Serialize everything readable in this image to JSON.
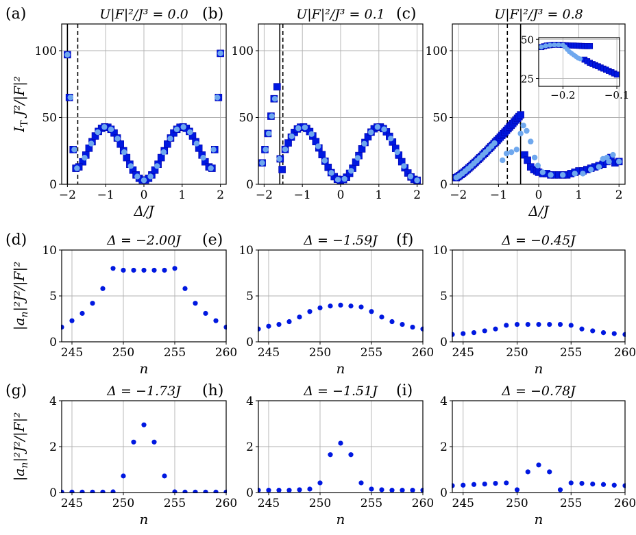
{
  "figure": {
    "colors": {
      "dark": "#0018e0",
      "light": "#6fa8ee",
      "dark_edge": "#0000aa"
    }
  },
  "chart_data": [
    {
      "id": "a",
      "panel_label": "(a)",
      "type": "scatter",
      "title": "U|F|²/J³ = 0.0",
      "xlabel": "Δ/J",
      "ylabel": "I_T J²/|F|²",
      "xlim": [
        -2.15,
        2.15
      ],
      "ylim": [
        0,
        120
      ],
      "xticks": [
        -2,
        -1,
        0,
        1,
        2
      ],
      "yticks": [
        0,
        50,
        100
      ],
      "grid": true,
      "vlines": [
        {
          "x": -2.0,
          "style": "solid"
        },
        {
          "x": -1.73,
          "style": "dashed"
        }
      ],
      "series": [
        {
          "marker": "square",
          "color": "dark",
          "fn": "cos",
          "x_from": -1.6,
          "x_to": 1.6,
          "points": 40,
          "extra": [
            [
              -2.0,
              97
            ],
            [
              -1.95,
              65
            ],
            [
              -1.85,
              26
            ],
            [
              -1.78,
              12
            ],
            [
              -1.7,
              13
            ],
            [
              1.7,
              13
            ],
            [
              1.78,
              12
            ],
            [
              1.85,
              26
            ],
            [
              1.95,
              65
            ],
            [
              2.0,
              98
            ]
          ]
        },
        {
          "marker": "circle",
          "color": "light",
          "fn": "cos",
          "x_from": -1.55,
          "x_to": 1.55,
          "points": 19,
          "extra": [
            [
              -2.0,
              97
            ],
            [
              -1.92,
              65
            ],
            [
              -1.82,
              26
            ],
            [
              -1.75,
              12
            ],
            [
              1.75,
              12
            ],
            [
              1.82,
              26
            ],
            [
              1.92,
              65
            ],
            [
              2.0,
              98
            ]
          ]
        }
      ]
    },
    {
      "id": "b",
      "panel_label": "(b)",
      "type": "scatter",
      "title": "U|F|²/J³ = 0.1",
      "xlabel": "",
      "ylabel": "",
      "xlim": [
        -2.15,
        2.15
      ],
      "ylim": [
        0,
        120
      ],
      "xticks": [
        -2,
        -1,
        0,
        1,
        2
      ],
      "yticks": [
        0,
        50,
        100
      ],
      "grid": true,
      "vlines": [
        {
          "x": -1.59,
          "style": "solid"
        },
        {
          "x": -1.51,
          "style": "dashed"
        }
      ],
      "series": [
        {
          "marker": "square",
          "color": "dark",
          "fn": "cos",
          "x_from": -1.45,
          "x_to": 2.0,
          "points": 44,
          "extra": [
            [
              -2.05,
              16
            ],
            [
              -1.98,
              26
            ],
            [
              -1.9,
              38
            ],
            [
              -1.82,
              51
            ],
            [
              -1.74,
              64
            ],
            [
              -1.66,
              73
            ],
            [
              -1.58,
              19
            ],
            [
              -1.53,
              11
            ]
          ]
        },
        {
          "marker": "circle",
          "color": "light",
          "fn": "cos",
          "x_from": -1.45,
          "x_to": 2.0,
          "points": 21,
          "extra": [
            [
              -2.05,
              16
            ],
            [
              -1.96,
              26
            ],
            [
              -1.88,
              38
            ],
            [
              -1.8,
              51
            ],
            [
              -1.72,
              64
            ],
            [
              -1.6,
              19
            ]
          ]
        }
      ]
    },
    {
      "id": "c",
      "panel_label": "(c)",
      "type": "scatter",
      "title": "U|F|²/J³ = 0.8",
      "xlabel": "Δ/J",
      "ylabel": "",
      "xlim": [
        -2.15,
        2.15
      ],
      "ylim": [
        0,
        120
      ],
      "xticks": [
        -2,
        -1,
        0,
        1,
        2
      ],
      "yticks": [
        0,
        50,
        100
      ],
      "grid": true,
      "vlines": [
        {
          "x": -0.45,
          "style": "solid"
        },
        {
          "x": -0.78,
          "style": "dashed"
        }
      ],
      "series": [
        {
          "marker": "square",
          "color": "dark",
          "fn": "rise",
          "x_from": -2.05,
          "x_to": -0.45,
          "points": 42,
          "extra": [
            [
              -0.35,
              22
            ],
            [
              -0.28,
              18
            ],
            [
              -0.2,
              13
            ],
            [
              -0.12,
              11
            ],
            [
              -0.05,
              10
            ],
            [
              0.0,
              9
            ],
            [
              0.1,
              8
            ],
            [
              0.2,
              8
            ],
            [
              0.3,
              7
            ],
            [
              0.4,
              7
            ],
            [
              0.5,
              7
            ],
            [
              0.6,
              7
            ],
            [
              0.7,
              7
            ],
            [
              0.8,
              8
            ],
            [
              0.9,
              9
            ],
            [
              1.0,
              10
            ],
            [
              1.1,
              10
            ],
            [
              1.2,
              11
            ],
            [
              1.3,
              12
            ],
            [
              1.4,
              13
            ],
            [
              1.5,
              14
            ],
            [
              1.6,
              15
            ],
            [
              1.7,
              17
            ],
            [
              1.8,
              20
            ],
            [
              1.9,
              16
            ],
            [
              2.0,
              17
            ]
          ]
        },
        {
          "marker": "circle",
          "color": "light",
          "fn": "rise",
          "x_from": -2.05,
          "x_to": -1.1,
          "points": 14,
          "extra": [
            [
              -0.9,
              18
            ],
            [
              -0.8,
              23
            ],
            [
              -0.68,
              24
            ],
            [
              -0.55,
              26
            ],
            [
              -0.45,
              38
            ],
            [
              -0.38,
              44
            ],
            [
              -0.3,
              40
            ],
            [
              -0.2,
              32
            ],
            [
              -0.1,
              20
            ],
            [
              -0.02,
              14
            ],
            [
              0.1,
              9
            ],
            [
              0.3,
              7
            ],
            [
              0.6,
              7
            ],
            [
              0.9,
              8
            ],
            [
              1.1,
              8
            ],
            [
              1.3,
              11
            ],
            [
              1.5,
              13
            ],
            [
              1.6,
              19
            ],
            [
              1.7,
              20
            ],
            [
              1.75,
              17
            ],
            [
              1.85,
              22
            ],
            [
              2.0,
              17
            ]
          ]
        }
      ],
      "inset": {
        "xlim": [
          -0.245,
          -0.095
        ],
        "ylim": [
          20,
          51
        ],
        "xticks": [
          -0.2,
          -0.1
        ],
        "yticks": [
          25,
          50
        ],
        "xticklabels": [
          "-0.2",
          "-0.1"
        ],
        "yticklabels": [
          "25",
          "50"
        ],
        "series": [
          {
            "marker": "square",
            "color": "dark",
            "points": [
              [
                -0.24,
                45
              ],
              [
                -0.235,
                45.5
              ],
              [
                -0.23,
                46
              ],
              [
                -0.225,
                46.2
              ],
              [
                -0.22,
                46.4
              ],
              [
                -0.215,
                46.5
              ],
              [
                -0.21,
                46.5
              ],
              [
                -0.205,
                46.4
              ],
              [
                -0.2,
                46.3
              ],
              [
                -0.195,
                46.2
              ],
              [
                -0.19,
                46.1
              ],
              [
                -0.185,
                46
              ],
              [
                -0.18,
                46
              ],
              [
                -0.175,
                45.9
              ],
              [
                -0.17,
                45.8
              ],
              [
                -0.165,
                45.7
              ],
              [
                -0.16,
                45.6
              ],
              [
                -0.155,
                45.6
              ],
              [
                -0.15,
                45.6
              ],
              [
                -0.16,
                37
              ],
              [
                -0.155,
                36
              ],
              [
                -0.15,
                35
              ],
              [
                -0.145,
                34.2
              ],
              [
                -0.14,
                33.5
              ],
              [
                -0.135,
                32.8
              ],
              [
                -0.13,
                32
              ],
              [
                -0.125,
                31.3
              ],
              [
                -0.12,
                30.6
              ],
              [
                -0.115,
                29.8
              ],
              [
                -0.11,
                29
              ],
              [
                -0.105,
                28.2
              ],
              [
                -0.1,
                27.5
              ]
            ]
          },
          {
            "marker": "circle",
            "color": "light",
            "points": [
              [
                -0.24,
                45
              ],
              [
                -0.232,
                45.8
              ],
              [
                -0.224,
                46.2
              ],
              [
                -0.216,
                46.4
              ],
              [
                -0.208,
                46.4
              ],
              [
                -0.2,
                46.2
              ],
              [
                -0.196,
                45
              ],
              [
                -0.192,
                43.5
              ],
              [
                -0.188,
                42
              ],
              [
                -0.184,
                41
              ],
              [
                -0.18,
                40
              ],
              [
                -0.176,
                39
              ],
              [
                -0.172,
                38
              ],
              [
                -0.168,
                37.5
              ]
            ]
          }
        ]
      }
    },
    {
      "id": "d",
      "panel_label": "(d)",
      "type": "scatter",
      "title": "Δ = −2.00J",
      "xlabel": "n",
      "ylabel": "|a_n|²J²/|F|²",
      "xlim": [
        244,
        260
      ],
      "ylim": [
        0,
        10
      ],
      "xticks": [
        245,
        250,
        255,
        260
      ],
      "yticks": [
        0,
        5,
        10
      ],
      "grid": true,
      "series": [
        {
          "marker": "dot",
          "color": "dark",
          "x": [
            244,
            245,
            246,
            247,
            248,
            249,
            250,
            251,
            252,
            253,
            254,
            255,
            256,
            257,
            258,
            259,
            260
          ],
          "y": [
            1.6,
            2.3,
            3.1,
            4.2,
            5.8,
            8.0,
            7.8,
            7.8,
            7.8,
            7.8,
            7.8,
            8.0,
            5.8,
            4.2,
            3.1,
            2.3,
            1.6
          ]
        }
      ]
    },
    {
      "id": "e",
      "panel_label": "(e)",
      "type": "scatter",
      "title": "Δ = −1.59J",
      "xlabel": "n",
      "ylabel": "",
      "xlim": [
        244,
        260
      ],
      "ylim": [
        0,
        10
      ],
      "xticks": [
        245,
        250,
        255,
        260
      ],
      "yticks": [
        0,
        5,
        10
      ],
      "grid": true,
      "series": [
        {
          "marker": "dot",
          "color": "dark",
          "x": [
            244,
            245,
            246,
            247,
            248,
            249,
            250,
            251,
            252,
            253,
            254,
            255,
            256,
            257,
            258,
            259,
            260
          ],
          "y": [
            1.4,
            1.7,
            1.9,
            2.2,
            2.7,
            3.3,
            3.7,
            3.9,
            4.0,
            3.9,
            3.8,
            3.3,
            2.7,
            2.2,
            1.9,
            1.6,
            1.4
          ]
        }
      ]
    },
    {
      "id": "f",
      "panel_label": "(f)",
      "type": "scatter",
      "title": "Δ = −0.45J",
      "xlabel": "n",
      "ylabel": "",
      "xlim": [
        244,
        260
      ],
      "ylim": [
        0,
        10
      ],
      "xticks": [
        245,
        250,
        255,
        260
      ],
      "yticks": [
        0,
        5,
        10
      ],
      "grid": true,
      "series": [
        {
          "marker": "dot",
          "color": "dark",
          "x": [
            244,
            245,
            246,
            247,
            248,
            249,
            250,
            251,
            252,
            253,
            254,
            255,
            256,
            257,
            258,
            259,
            260
          ],
          "y": [
            0.8,
            0.9,
            1.0,
            1.2,
            1.4,
            1.8,
            1.9,
            1.9,
            1.9,
            1.9,
            1.9,
            1.8,
            1.4,
            1.2,
            1.0,
            0.9,
            0.8
          ]
        }
      ]
    },
    {
      "id": "g",
      "panel_label": "(g)",
      "type": "scatter",
      "title": "Δ = −1.73J",
      "xlabel": "n",
      "ylabel": "|a_n|²J²/|F|²",
      "xlim": [
        244,
        260
      ],
      "ylim": [
        0,
        4
      ],
      "xticks": [
        245,
        250,
        255,
        260
      ],
      "yticks": [
        0,
        2,
        4
      ],
      "grid": true,
      "series": [
        {
          "marker": "dot",
          "color": "dark",
          "x": [
            244,
            245,
            246,
            247,
            248,
            249,
            250,
            251,
            252,
            253,
            254,
            255,
            256,
            257,
            258,
            259,
            260
          ],
          "y": [
            0.02,
            0.02,
            0.02,
            0.02,
            0.02,
            0.03,
            0.72,
            2.2,
            2.95,
            2.2,
            0.72,
            0.03,
            0.02,
            0.02,
            0.02,
            0.02,
            0.02
          ]
        }
      ]
    },
    {
      "id": "h",
      "panel_label": "(h)",
      "type": "scatter",
      "title": "Δ = −1.51J",
      "xlabel": "n",
      "ylabel": "",
      "xlim": [
        244,
        260
      ],
      "ylim": [
        0,
        4
      ],
      "xticks": [
        245,
        250,
        255,
        260
      ],
      "yticks": [
        0,
        2,
        4
      ],
      "grid": true,
      "series": [
        {
          "marker": "dot",
          "color": "dark",
          "x": [
            244,
            245,
            246,
            247,
            248,
            249,
            250,
            251,
            252,
            253,
            254,
            255,
            256,
            257,
            258,
            259,
            260
          ],
          "y": [
            0.1,
            0.1,
            0.1,
            0.1,
            0.12,
            0.15,
            0.42,
            1.65,
            2.15,
            1.65,
            0.42,
            0.15,
            0.12,
            0.1,
            0.1,
            0.1,
            0.1
          ]
        }
      ]
    },
    {
      "id": "i",
      "panel_label": "(i)",
      "type": "scatter",
      "title": "Δ = −0.78J",
      "xlabel": "n",
      "ylabel": "",
      "xlim": [
        244,
        260
      ],
      "ylim": [
        0,
        4
      ],
      "xticks": [
        245,
        250,
        255,
        260
      ],
      "yticks": [
        0,
        2,
        4
      ],
      "grid": true,
      "series": [
        {
          "marker": "dot",
          "color": "dark",
          "x": [
            244,
            245,
            246,
            247,
            248,
            249,
            250,
            251,
            252,
            253,
            254,
            255,
            256,
            257,
            258,
            259,
            260
          ],
          "y": [
            0.3,
            0.32,
            0.35,
            0.37,
            0.4,
            0.42,
            0.12,
            0.9,
            1.2,
            0.9,
            0.12,
            0.42,
            0.4,
            0.37,
            0.35,
            0.32,
            0.3
          ]
        }
      ]
    }
  ]
}
